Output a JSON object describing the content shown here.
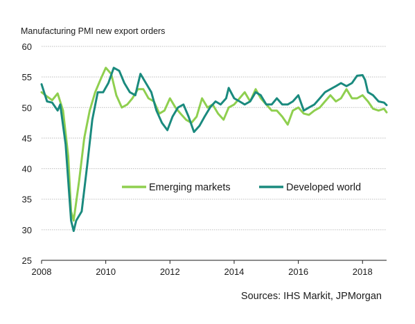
{
  "chart_data": {
    "type": "line",
    "title": "Manufacturing PMI new export orders",
    "source": "Sources: IHS Markit, JPMorgan",
    "x_ticks": [
      "2008",
      "2010",
      "2012",
      "2014",
      "2016",
      "2018"
    ],
    "y_ticks": [
      "25",
      "30",
      "35",
      "40",
      "45",
      "50",
      "55",
      "60"
    ],
    "xlim": [
      2008.0,
      2018.75
    ],
    "ylim": [
      25,
      60
    ],
    "grid": "horizontal",
    "legend_position": "center-right",
    "series": [
      {
        "name": "Emerging markets",
        "color": "#8fcf4f",
        "points": [
          [
            2008.0,
            52.5
          ],
          [
            2008.17,
            51.8
          ],
          [
            2008.33,
            51.2
          ],
          [
            2008.5,
            52.3
          ],
          [
            2008.67,
            49.5
          ],
          [
            2008.83,
            42.0
          ],
          [
            2008.92,
            33.0
          ],
          [
            2009.0,
            31.5
          ],
          [
            2009.17,
            38.0
          ],
          [
            2009.33,
            45.0
          ],
          [
            2009.5,
            49.5
          ],
          [
            2009.67,
            52.5
          ],
          [
            2009.83,
            54.5
          ],
          [
            2010.0,
            56.5
          ],
          [
            2010.17,
            55.5
          ],
          [
            2010.33,
            52.0
          ],
          [
            2010.5,
            50.0
          ],
          [
            2010.67,
            50.5
          ],
          [
            2010.83,
            51.5
          ],
          [
            2011.0,
            53.0
          ],
          [
            2011.17,
            53.0
          ],
          [
            2011.33,
            51.5
          ],
          [
            2011.5,
            51.0
          ],
          [
            2011.67,
            49.0
          ],
          [
            2011.83,
            49.5
          ],
          [
            2012.0,
            51.5
          ],
          [
            2012.17,
            50.0
          ],
          [
            2012.33,
            49.0
          ],
          [
            2012.5,
            48.0
          ],
          [
            2012.67,
            47.5
          ],
          [
            2012.83,
            48.5
          ],
          [
            2013.0,
            51.5
          ],
          [
            2013.17,
            50.0
          ],
          [
            2013.33,
            50.5
          ],
          [
            2013.5,
            49.0
          ],
          [
            2013.67,
            48.0
          ],
          [
            2013.83,
            50.0
          ],
          [
            2014.0,
            50.5
          ],
          [
            2014.17,
            51.5
          ],
          [
            2014.33,
            52.5
          ],
          [
            2014.5,
            51.0
          ],
          [
            2014.67,
            53.0
          ],
          [
            2014.83,
            51.5
          ],
          [
            2015.0,
            50.5
          ],
          [
            2015.17,
            49.5
          ],
          [
            2015.33,
            49.5
          ],
          [
            2015.5,
            48.5
          ],
          [
            2015.67,
            47.2
          ],
          [
            2015.83,
            49.5
          ],
          [
            2016.0,
            50.0
          ],
          [
            2016.17,
            49.0
          ],
          [
            2016.33,
            48.8
          ],
          [
            2016.5,
            49.5
          ],
          [
            2016.67,
            50.0
          ],
          [
            2016.83,
            51.0
          ],
          [
            2017.0,
            52.0
          ],
          [
            2017.17,
            51.0
          ],
          [
            2017.33,
            51.5
          ],
          [
            2017.5,
            53.0
          ],
          [
            2017.67,
            51.5
          ],
          [
            2017.83,
            51.5
          ],
          [
            2018.0,
            52.0
          ],
          [
            2018.17,
            51.0
          ],
          [
            2018.33,
            49.8
          ],
          [
            2018.5,
            49.5
          ],
          [
            2018.67,
            49.8
          ],
          [
            2018.75,
            49.2
          ]
        ]
      },
      {
        "name": "Developed world",
        "color": "#1a8a7e",
        "points": [
          [
            2008.0,
            53.8
          ],
          [
            2008.17,
            51.0
          ],
          [
            2008.33,
            50.8
          ],
          [
            2008.5,
            49.5
          ],
          [
            2008.58,
            50.5
          ],
          [
            2008.75,
            44.0
          ],
          [
            2008.83,
            38.0
          ],
          [
            2008.92,
            31.5
          ],
          [
            2009.0,
            29.8
          ],
          [
            2009.08,
            31.5
          ],
          [
            2009.25,
            33.0
          ],
          [
            2009.42,
            40.5
          ],
          [
            2009.58,
            48.0
          ],
          [
            2009.75,
            52.5
          ],
          [
            2009.92,
            52.5
          ],
          [
            2010.08,
            54.0
          ],
          [
            2010.25,
            56.5
          ],
          [
            2010.42,
            56.0
          ],
          [
            2010.58,
            54.0
          ],
          [
            2010.75,
            52.5
          ],
          [
            2010.92,
            52.0
          ],
          [
            2011.08,
            55.5
          ],
          [
            2011.25,
            54.0
          ],
          [
            2011.42,
            52.5
          ],
          [
            2011.58,
            49.5
          ],
          [
            2011.75,
            47.5
          ],
          [
            2011.92,
            46.3
          ],
          [
            2012.08,
            48.5
          ],
          [
            2012.25,
            50.0
          ],
          [
            2012.42,
            50.5
          ],
          [
            2012.58,
            48.5
          ],
          [
            2012.75,
            46.0
          ],
          [
            2012.92,
            47.0
          ],
          [
            2013.08,
            48.5
          ],
          [
            2013.25,
            50.0
          ],
          [
            2013.42,
            51.0
          ],
          [
            2013.58,
            50.5
          ],
          [
            2013.75,
            51.5
          ],
          [
            2013.83,
            53.2
          ],
          [
            2014.0,
            51.5
          ],
          [
            2014.17,
            51.0
          ],
          [
            2014.33,
            50.5
          ],
          [
            2014.5,
            51.0
          ],
          [
            2014.67,
            52.5
          ],
          [
            2014.83,
            52.0
          ],
          [
            2015.0,
            50.5
          ],
          [
            2015.17,
            50.5
          ],
          [
            2015.33,
            51.5
          ],
          [
            2015.5,
            50.5
          ],
          [
            2015.67,
            50.5
          ],
          [
            2015.83,
            51.0
          ],
          [
            2016.0,
            52.0
          ],
          [
            2016.17,
            49.5
          ],
          [
            2016.33,
            50.0
          ],
          [
            2016.5,
            50.5
          ],
          [
            2016.67,
            51.5
          ],
          [
            2016.83,
            52.5
          ],
          [
            2017.0,
            53.0
          ],
          [
            2017.17,
            53.5
          ],
          [
            2017.33,
            54.0
          ],
          [
            2017.5,
            53.5
          ],
          [
            2017.67,
            54.0
          ],
          [
            2017.83,
            55.2
          ],
          [
            2018.0,
            55.3
          ],
          [
            2018.08,
            54.5
          ],
          [
            2018.17,
            52.5
          ],
          [
            2018.33,
            52.0
          ],
          [
            2018.5,
            51.0
          ],
          [
            2018.67,
            50.8
          ],
          [
            2018.75,
            50.4
          ]
        ]
      }
    ]
  }
}
